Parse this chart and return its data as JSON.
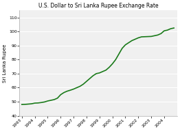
{
  "title": "U.S. Dollar to Sri Lanka Rupee Exchange Rate",
  "ylabel": "Sri Lanka Rupee",
  "xlim": [
    1992.8,
    2005.0
  ],
  "ylim": [
    40,
    115
  ],
  "yticks": [
    40,
    50,
    60,
    70,
    80,
    90,
    100,
    110
  ],
  "xtick_labels": [
    "1993",
    "1994",
    "1995",
    "1996",
    "1997",
    "1998",
    "1999",
    "2000",
    "2001",
    "2002",
    "2003",
    "2004"
  ],
  "line_color": "#1a7a1a",
  "line_width": 1.2,
  "bg_color": "#f0f0f0",
  "grid_color": "#ffffff",
  "title_fontsize": 5.5,
  "tick_fontsize": 4.5,
  "ylabel_fontsize": 5,
  "years": [
    1993.0,
    1993.25,
    1993.5,
    1993.75,
    1994.0,
    1994.25,
    1994.5,
    1994.75,
    1995.0,
    1995.25,
    1995.5,
    1995.75,
    1996.0,
    1996.25,
    1996.5,
    1996.75,
    1997.0,
    1997.25,
    1997.5,
    1997.75,
    1998.0,
    1998.25,
    1998.5,
    1998.75,
    1999.0,
    1999.25,
    1999.5,
    1999.75,
    2000.0,
    2000.25,
    2000.5,
    2000.75,
    2001.0,
    2001.25,
    2001.5,
    2001.75,
    2002.0,
    2002.25,
    2002.5,
    2002.75,
    2003.0,
    2003.25,
    2003.5,
    2003.75,
    2004.0,
    2004.25,
    2004.5,
    2004.75
  ],
  "values": [
    48.0,
    48.1,
    48.3,
    48.5,
    49.0,
    49.1,
    49.4,
    49.8,
    50.5,
    51.0,
    51.5,
    52.5,
    55.0,
    56.5,
    57.5,
    58.2,
    59.0,
    60.0,
    61.0,
    62.5,
    64.5,
    66.5,
    68.5,
    70.0,
    70.5,
    71.5,
    72.5,
    74.5,
    77.0,
    80.0,
    84.0,
    88.0,
    90.5,
    92.0,
    93.5,
    94.5,
    95.5,
    96.2,
    96.3,
    96.4,
    96.5,
    97.0,
    97.5,
    98.5,
    100.5,
    101.0,
    102.0,
    102.5
  ]
}
